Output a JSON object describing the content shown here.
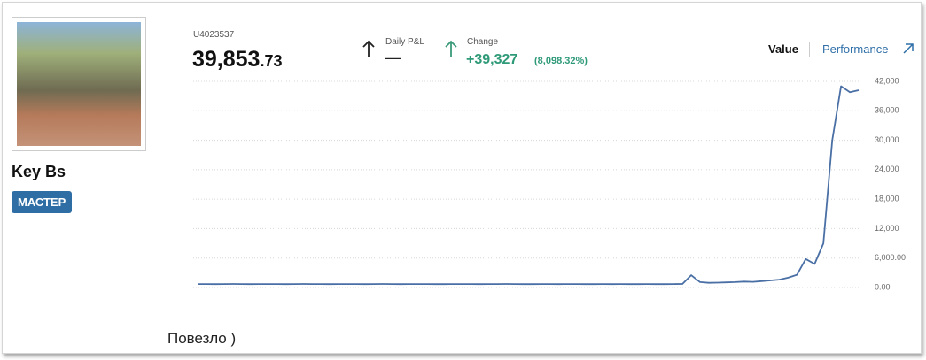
{
  "user": {
    "name": "Key Bs",
    "badge": "МАСТЕР"
  },
  "account": {
    "id": "U4023537",
    "balance_main": "39,853",
    "balance_cents": ".73",
    "daily_label": "Daily P&L",
    "daily_value": "—",
    "change_label": "Change",
    "change_value": "+39,327",
    "change_pct": "(8,098.32%)",
    "tabs": [
      "Value",
      "Performance"
    ]
  },
  "chart_data": {
    "type": "line",
    "color": "#4a6fa5",
    "values": [
      700,
      710,
      690,
      700,
      720,
      700,
      690,
      700,
      710,
      700,
      690,
      700,
      720,
      710,
      700,
      690,
      700,
      700,
      710,
      690,
      700,
      720,
      700,
      690,
      700,
      710,
      700,
      690,
      680,
      700,
      710,
      700,
      690,
      700,
      700,
      720,
      700,
      690,
      680,
      700,
      700,
      690,
      700,
      710,
      690,
      680,
      700,
      690,
      700,
      680,
      690,
      700,
      680,
      690,
      700,
      720,
      2500,
      1100,
      950,
      1000,
      1050,
      1100,
      1200,
      1150,
      1300,
      1450,
      1600,
      2000,
      2600,
      5800,
      4800,
      9000,
      30000,
      41000,
      39800,
      40200
    ],
    "ylim": [
      0,
      42000
    ],
    "yticks": [
      {
        "value": 0,
        "label": "0.00"
      },
      {
        "value": 6000,
        "label": "6,000.00"
      },
      {
        "value": 12000,
        "label": "12,000"
      },
      {
        "value": 18000,
        "label": "18,000"
      },
      {
        "value": 24000,
        "label": "24,000"
      },
      {
        "value": 30000,
        "label": "30,000"
      },
      {
        "value": 36000,
        "label": "36,000"
      },
      {
        "value": 42000,
        "label": "42,000"
      }
    ],
    "grid": true
  },
  "post": {
    "text": "Повезло )"
  }
}
